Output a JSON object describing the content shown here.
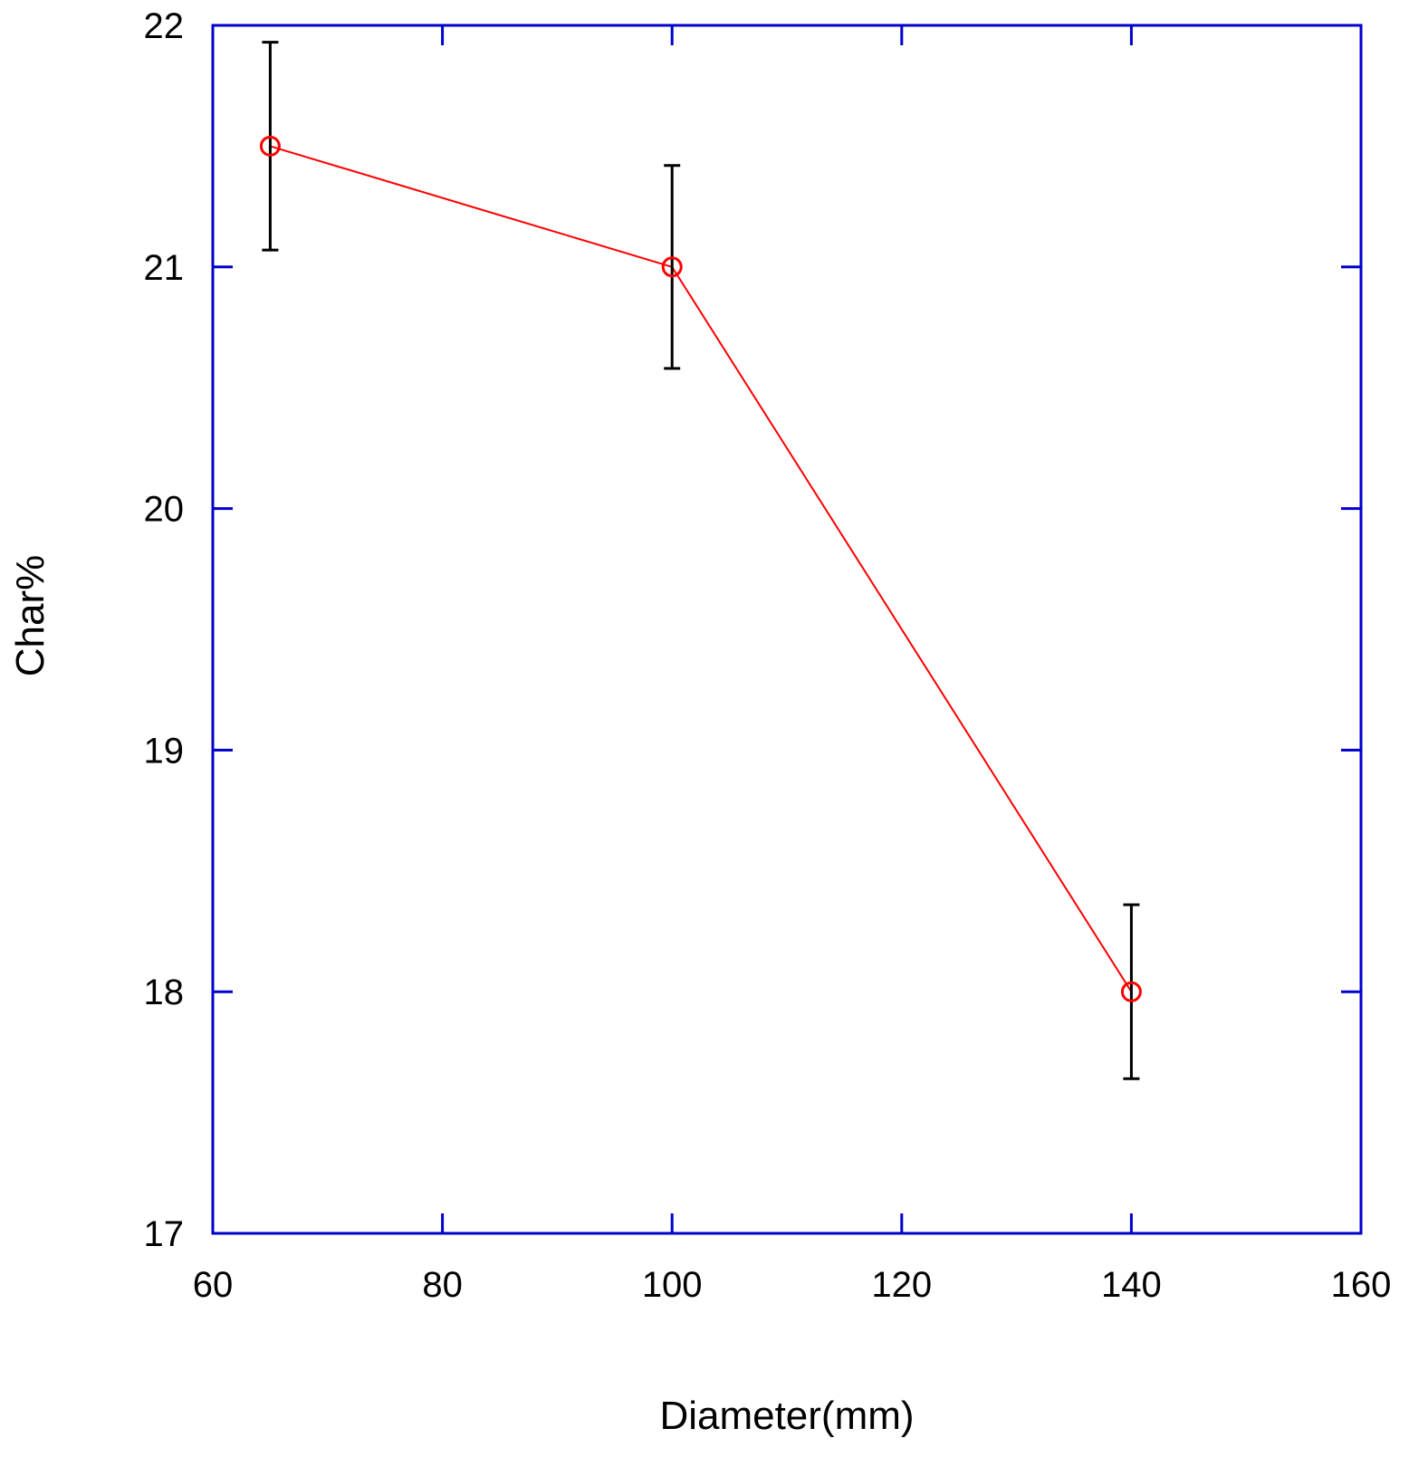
{
  "chart_data": {
    "type": "line",
    "title": "",
    "xlabel": "Diameter(mm)",
    "ylabel": "Char%",
    "xlim": [
      60,
      160
    ],
    "ylim": [
      17,
      22
    ],
    "xticks": [
      60,
      80,
      100,
      120,
      140,
      160
    ],
    "yticks": [
      17,
      18,
      19,
      20,
      21,
      22
    ],
    "xtick_labels": [
      "60",
      "80",
      "100",
      "120",
      "140",
      "160"
    ],
    "ytick_labels": [
      "17",
      "18",
      "19",
      "20",
      "21",
      "22"
    ],
    "grid": false,
    "legend": "none",
    "series": [
      {
        "x": [
          65,
          100,
          140
        ],
        "y": [
          21.5,
          21.0,
          18.0
        ],
        "error": [
          0.43,
          0.42,
          0.36
        ],
        "marker": "open-circle",
        "color": "#ff0000",
        "error_color": "#000000"
      }
    ],
    "axis_color": "#0000cc"
  }
}
